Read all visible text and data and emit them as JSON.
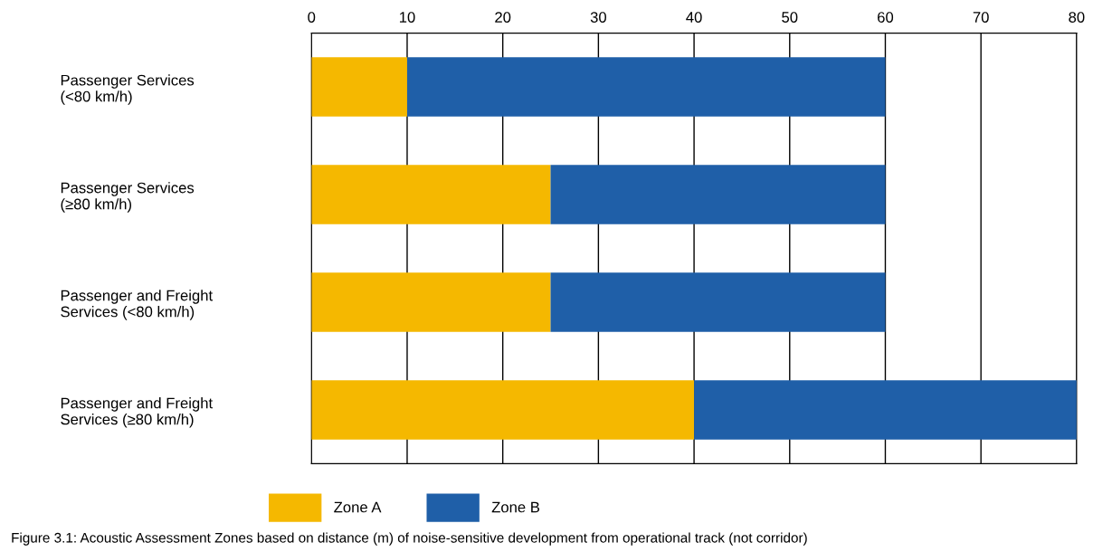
{
  "chart_data": {
    "type": "bar",
    "orientation": "horizontal",
    "stacked": true,
    "categories": [
      "Passenger Services\n(<80 km/h)",
      "Passenger Services\n(≥80 km/h)",
      "Passenger and Freight\nServices (<80 km/h)",
      "Passenger and Freight\nServices (≥80 km/h)"
    ],
    "series": [
      {
        "name": "Zone A",
        "color": "#f5b800",
        "values": [
          10,
          25,
          25,
          40
        ]
      },
      {
        "name": "Zone B",
        "color": "#1f5fa8",
        "values": [
          50,
          35,
          35,
          40
        ]
      }
    ],
    "xlim": [
      0,
      80
    ],
    "xticks": [
      0,
      10,
      20,
      30,
      40,
      50,
      60,
      70,
      80
    ],
    "grid": "x",
    "legend": "bottom",
    "annotations": [
      "Figure 3.1: Acoustic Assessment Zones based on distance (m) of noise-sensitive development from operational track (not corridor)"
    ]
  }
}
